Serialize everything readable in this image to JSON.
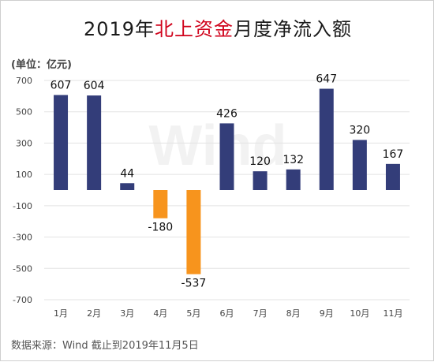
{
  "title": {
    "pre": "2019年",
    "highlight": "北上资金",
    "post": "月度净流入额"
  },
  "unit_label": "(单位：亿元)",
  "source": "数据来源：Wind  截止到2019年11月5日",
  "watermark": "Wind",
  "colors": {
    "positive": "#333d79",
    "negative": "#f7941d",
    "title_highlight": "#d0021b"
  },
  "chart_data": {
    "type": "bar",
    "categories": [
      "1月",
      "2月",
      "3月",
      "4月",
      "5月",
      "6月",
      "7月",
      "8月",
      "9月",
      "10月",
      "11月"
    ],
    "values": [
      607,
      604,
      44,
      -180,
      -537,
      426,
      120,
      132,
      647,
      320,
      167
    ],
    "data_labels": [
      "607",
      "604",
      "44",
      "-180",
      "-537",
      "426",
      "120",
      "132",
      "647",
      "320",
      "167"
    ],
    "title": "2019年北上资金月度净流入额",
    "ylabel": "(单位：亿元)",
    "yticks": [
      700,
      500,
      300,
      100,
      -100,
      -300,
      -500,
      -700
    ],
    "ytick_labels": [
      "700",
      "500",
      "300",
      "100",
      "-100",
      "-300",
      "-500",
      "-700"
    ],
    "ylim": [
      -700,
      700
    ],
    "grid": true
  }
}
